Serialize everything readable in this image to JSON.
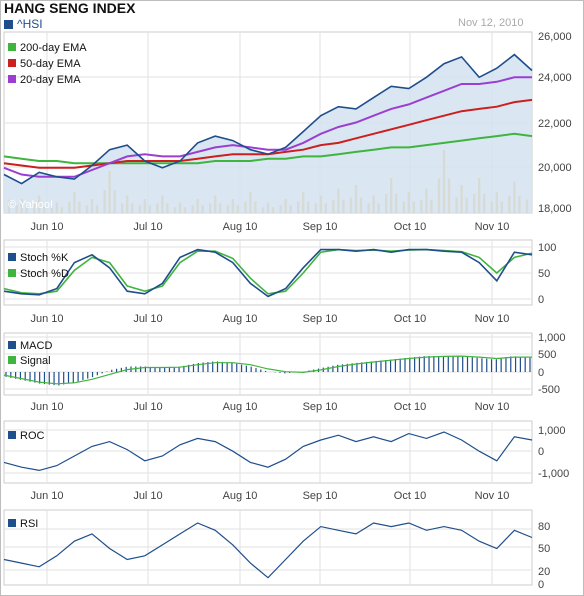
{
  "header": {
    "title": "HANG SENG INDEX",
    "ticker": "^HSI",
    "date": "Nov 12, 2010",
    "watermark": "© Yahoo!"
  },
  "months": [
    "Jun 10",
    "Jul 10",
    "Aug 10",
    "Sep 10",
    "Oct 10",
    "Nov 10"
  ],
  "colors": {
    "price": "#1f4e8c",
    "price_fill": "#d3e3f1",
    "ema200": "#3fb43f",
    "ema50": "#cc1f1f",
    "ema20": "#9b3fd1",
    "volume": "#e8a93a",
    "stoch_k": "#1f4e8c",
    "stoch_d": "#3fb43f",
    "macd": "#1f4e8c",
    "signal": "#3fb43f",
    "roc": "#1f4e8c",
    "rsi": "#1f4e8c"
  },
  "chart_data": [
    {
      "type": "line",
      "panel": "price",
      "ylim": [
        18000,
        26000
      ],
      "yticks": [
        "26,000",
        "24,000",
        "22,000",
        "20,000",
        "18,000"
      ],
      "legend": [
        "200-day EMA",
        "50-day EMA",
        "20-day EMA"
      ],
      "series": [
        {
          "name": "^HSI",
          "values": [
            19700,
            19300,
            19800,
            19600,
            19500,
            20100,
            20800,
            21000,
            20300,
            20000,
            20300,
            21100,
            21400,
            21200,
            20800,
            20600,
            20900,
            21600,
            22300,
            22700,
            22600,
            23100,
            23600,
            23500,
            24000,
            24600,
            24900,
            24000,
            24400,
            25000,
            24300
          ]
        },
        {
          "name": "200-day EMA",
          "values": [
            20500,
            20400,
            20300,
            20300,
            20200,
            20200,
            20200,
            20200,
            20200,
            20200,
            20200,
            20200,
            20300,
            20300,
            20300,
            20400,
            20400,
            20500,
            20500,
            20600,
            20700,
            20800,
            20900,
            20900,
            21000,
            21100,
            21200,
            21300,
            21400,
            21500,
            21400
          ]
        },
        {
          "name": "50-day EMA",
          "values": [
            20200,
            20100,
            20000,
            20000,
            20000,
            20100,
            20200,
            20300,
            20300,
            20300,
            20300,
            20400,
            20500,
            20600,
            20600,
            20600,
            20700,
            20800,
            21000,
            21100,
            21300,
            21500,
            21700,
            21900,
            22100,
            22300,
            22500,
            22600,
            22700,
            22900,
            23000
          ]
        },
        {
          "name": "20-day EMA",
          "values": [
            20000,
            19700,
            19600,
            19600,
            19600,
            19900,
            20200,
            20500,
            20600,
            20500,
            20500,
            20700,
            20900,
            21000,
            20900,
            20800,
            20800,
            21100,
            21500,
            21800,
            22000,
            22300,
            22600,
            22800,
            23100,
            23400,
            23700,
            23700,
            23800,
            24000,
            24000
          ]
        }
      ],
      "volume": [
        0.35,
        0.2,
        0.25,
        0.15,
        0.3,
        0.2,
        0.6,
        0.25,
        0.2,
        0.25,
        0.15,
        0.2,
        0.25,
        0.2,
        0.3,
        0.15,
        0.2,
        0.3,
        0.25,
        0.35,
        0.4,
        0.25,
        0.5,
        0.3,
        0.35,
        0.9,
        0.4,
        0.5,
        0.3,
        0.45,
        0.35
      ]
    },
    {
      "type": "line",
      "panel": "stochastic",
      "ylim": [
        0,
        100
      ],
      "yticks": [
        "100",
        "50",
        "0"
      ],
      "series": [
        {
          "name": "Stoch %K",
          "values": [
            15,
            10,
            8,
            20,
            70,
            85,
            60,
            15,
            10,
            30,
            80,
            95,
            90,
            70,
            30,
            5,
            20,
            60,
            95,
            95,
            92,
            95,
            90,
            95,
            95,
            92,
            90,
            70,
            35,
            90,
            85
          ]
        },
        {
          "name": "Stoch %D",
          "values": [
            20,
            12,
            10,
            15,
            55,
            80,
            70,
            25,
            15,
            25,
            70,
            92,
            92,
            78,
            40,
            10,
            15,
            50,
            90,
            95,
            93,
            94,
            92,
            94,
            95,
            93,
            91,
            80,
            50,
            80,
            88
          ]
        }
      ]
    },
    {
      "type": "bar",
      "panel": "macd",
      "ylim": [
        -500,
        1000
      ],
      "yticks": [
        "1,000",
        "500",
        "0",
        "-500"
      ],
      "series": [
        {
          "name": "MACD",
          "values": [
            -150,
            -250,
            -350,
            -400,
            -300,
            -150,
            50,
            150,
            150,
            100,
            150,
            250,
            300,
            250,
            150,
            0,
            -50,
            0,
            100,
            200,
            250,
            300,
            350,
            400,
            450,
            450,
            450,
            400,
            350,
            450,
            400
          ]
        },
        {
          "name": "Signal",
          "values": [
            -100,
            -200,
            -300,
            -350,
            -320,
            -220,
            -80,
            60,
            120,
            120,
            130,
            200,
            260,
            260,
            200,
            80,
            0,
            -20,
            50,
            150,
            220,
            280,
            330,
            380,
            420,
            440,
            450,
            420,
            380,
            420,
            420
          ]
        }
      ]
    },
    {
      "type": "line",
      "panel": "roc",
      "ylim": [
        -1500,
        2000
      ],
      "yticks": [
        "1,000",
        "0",
        "-1,000"
      ],
      "series": [
        {
          "name": "ROC",
          "values": [
            -400,
            -700,
            -900,
            -600,
            0,
            600,
            900,
            400,
            -300,
            0,
            700,
            1100,
            900,
            300,
            -400,
            -700,
            -200,
            600,
            1000,
            1300,
            900,
            1200,
            900,
            1400,
            1100,
            1500,
            1000,
            300,
            -300,
            1200,
            1000
          ]
        }
      ]
    },
    {
      "type": "line",
      "panel": "rsi",
      "ylim": [
        0,
        100
      ],
      "yticks": [
        "80",
        "50",
        "20",
        "0"
      ],
      "series": [
        {
          "name": "RSI",
          "values": [
            35,
            30,
            25,
            40,
            60,
            70,
            50,
            35,
            40,
            55,
            70,
            85,
            75,
            55,
            30,
            10,
            35,
            60,
            80,
            75,
            70,
            85,
            80,
            85,
            75,
            80,
            75,
            60,
            50,
            75,
            65
          ]
        }
      ]
    }
  ]
}
